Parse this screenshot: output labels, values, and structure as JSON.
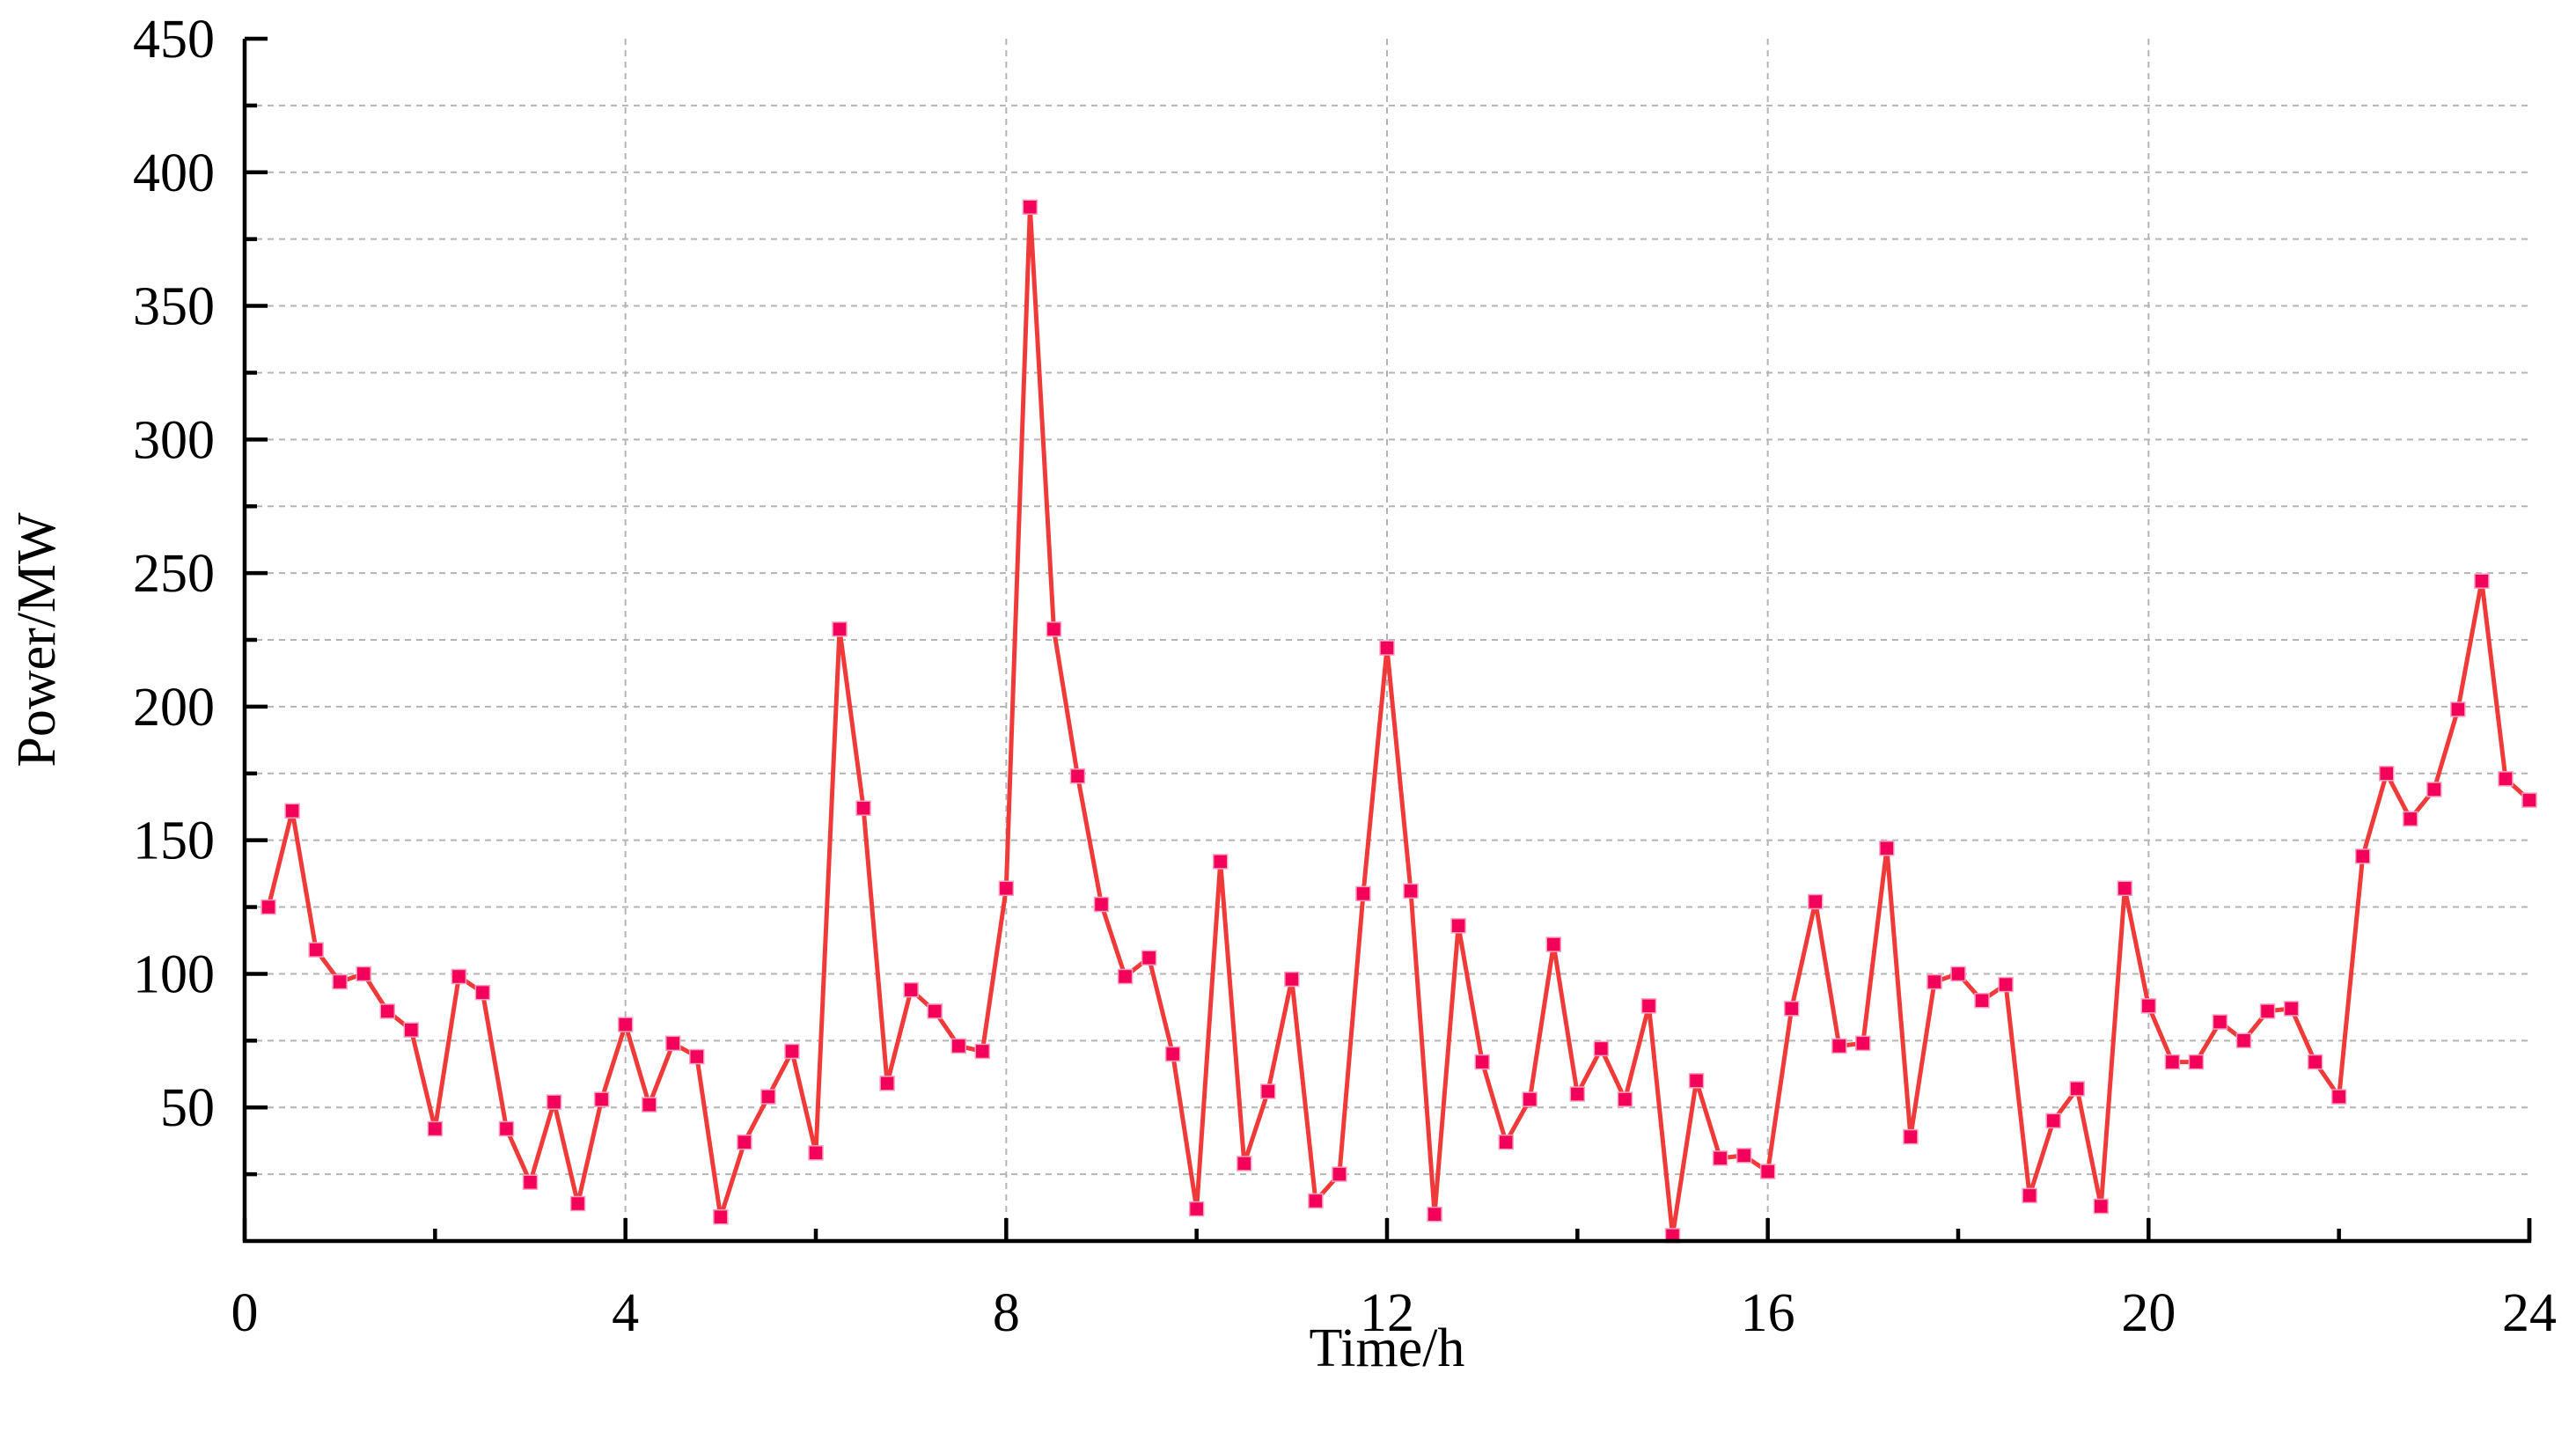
{
  "chart_data": {
    "type": "line",
    "xlabel": "Time/h",
    "ylabel": "Power/MW",
    "xlim": [
      0,
      24
    ],
    "ylim": [
      0,
      450
    ],
    "xticks": [
      0,
      4,
      8,
      12,
      16,
      20,
      24
    ],
    "yticks": [
      50,
      100,
      150,
      200,
      250,
      300,
      350,
      400,
      450
    ],
    "grid": true,
    "line_color": "#f03a3a",
    "marker_color": "#f2005a",
    "marker": "square",
    "series": [
      {
        "x": [
          0.25,
          0.5,
          0.75,
          1.0,
          1.25,
          1.5,
          1.75,
          2.0,
          2.25,
          2.5,
          2.75,
          3.0,
          3.25,
          3.5,
          3.75,
          4.0,
          4.25,
          4.5,
          4.75,
          5.0,
          5.25,
          5.5,
          5.75,
          6.0,
          6.25,
          6.5,
          6.75,
          7.0,
          7.25,
          7.5,
          7.75,
          8.0,
          8.25,
          8.5,
          8.75,
          9.0,
          9.25,
          9.5,
          9.75,
          10.0,
          10.25,
          10.5,
          10.75,
          11.0,
          11.25,
          11.5,
          11.75,
          12.0,
          12.25,
          12.5,
          12.75,
          13.0,
          13.25,
          13.5,
          13.75,
          14.0,
          14.25,
          14.5,
          14.75,
          15.0,
          15.25,
          15.5,
          15.75,
          16.0,
          16.25,
          16.5,
          16.75,
          17.0,
          17.25,
          17.5,
          17.75,
          18.0,
          18.25,
          18.5,
          18.75,
          19.0,
          19.25,
          19.5,
          19.75,
          20.0,
          20.25,
          20.5,
          20.75,
          21.0,
          21.25,
          21.5,
          21.75,
          22.0,
          22.25,
          22.5,
          22.75,
          23.0,
          23.25,
          23.5,
          23.75,
          24.0
        ],
        "y": [
          125,
          161,
          109,
          97,
          100,
          86,
          79,
          42,
          99,
          93,
          42,
          22,
          52,
          14,
          53,
          81,
          51,
          74,
          69,
          9,
          37,
          54,
          71,
          33,
          229,
          162,
          59,
          94,
          86,
          73,
          71,
          132,
          387,
          229,
          174,
          126,
          99,
          106,
          70,
          12,
          142,
          29,
          56,
          98,
          15,
          25,
          130,
          222,
          131,
          10,
          118,
          67,
          37,
          53,
          111,
          55,
          72,
          53,
          88,
          2,
          60,
          31,
          32,
          26,
          87,
          127,
          73,
          74,
          147,
          39,
          97,
          100,
          90,
          96,
          17,
          45,
          57,
          13,
          132,
          88,
          67,
          67,
          82,
          75,
          86,
          87,
          67,
          54,
          144,
          175,
          158,
          169,
          199,
          247,
          173,
          165
        ]
      }
    ]
  }
}
